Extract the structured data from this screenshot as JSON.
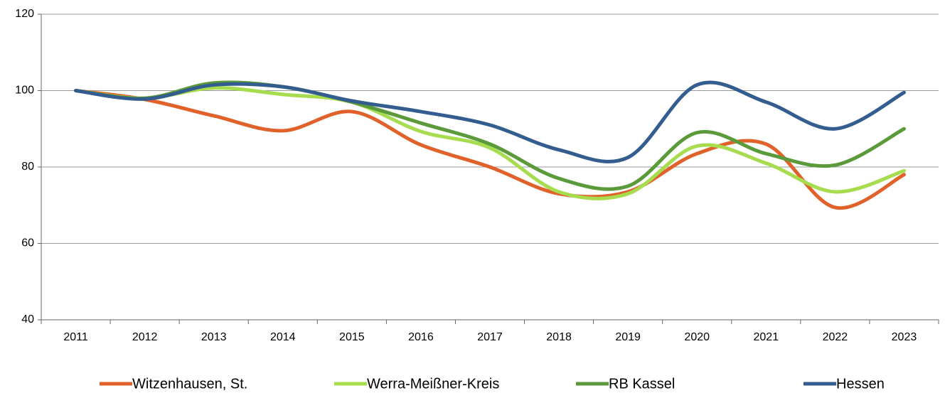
{
  "chart_data": {
    "type": "line",
    "categories": [
      "2011",
      "2012",
      "2013",
      "2014",
      "2015",
      "2016",
      "2017",
      "2018",
      "2019",
      "2020",
      "2021",
      "2022",
      "2023"
    ],
    "series": [
      {
        "name": "Witzenhausen, St.",
        "color": "#e0622a",
        "values": [
          100,
          97.7,
          93.4,
          89.5,
          94.5,
          85.8,
          80,
          73,
          73.5,
          83.5,
          86,
          69.4,
          78
        ]
      },
      {
        "name": "Werra-Meißner-Kreis",
        "color": "#a6dc4e",
        "values": [
          100,
          98,
          100.7,
          99,
          97,
          89.3,
          85,
          73.5,
          73,
          85.5,
          81,
          73.5,
          79
        ]
      },
      {
        "name": "RB Kassel",
        "color": "#5b9a3a",
        "values": [
          100,
          98,
          102,
          101,
          97,
          91.5,
          86,
          77,
          75,
          89,
          83.5,
          80.5,
          90
        ]
      },
      {
        "name": "Hessen",
        "color": "#345d8f",
        "values": [
          100,
          97.8,
          101.5,
          101,
          97.3,
          94.5,
          91,
          84.5,
          82.5,
          101.5,
          97,
          90,
          99.5
        ]
      }
    ],
    "ylim": [
      40,
      120
    ],
    "yticks": [
      40,
      60,
      80,
      100,
      120
    ],
    "grid": true,
    "legend": "bottom"
  }
}
